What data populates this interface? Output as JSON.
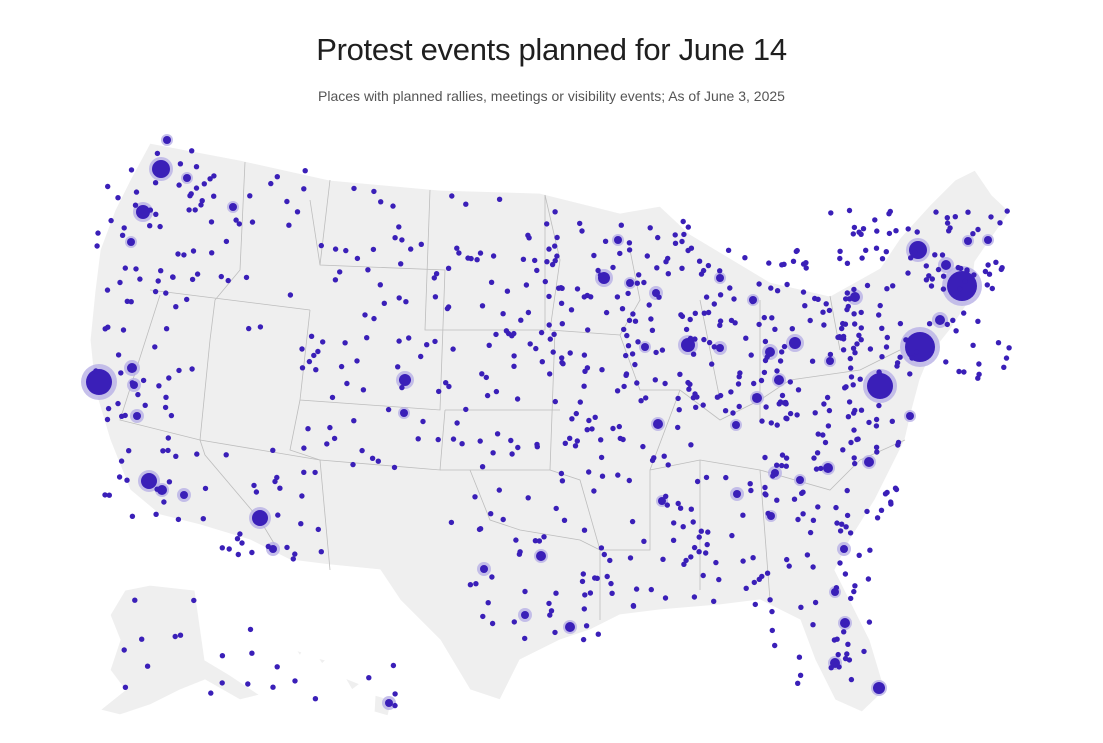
{
  "header": {
    "title": "Protest events planned for June 14",
    "subtitle": "Places with planned rallies, meetings or visibility events; As of June 3, 2025"
  },
  "colors": {
    "event_marker": "#3a1fb8",
    "event_halo": "#b8b0e6",
    "land": "#efefef",
    "state_border": "#bdbdbd"
  }
}
